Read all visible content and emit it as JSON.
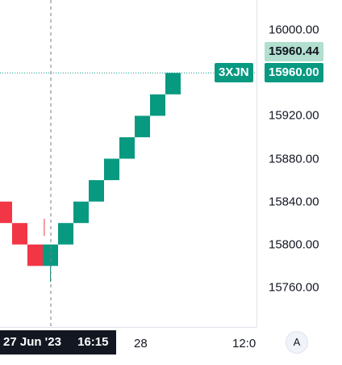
{
  "chart_data": {
    "type": "renko",
    "symbol": "3XJN",
    "box_size": 20,
    "price_axis": {
      "ticks": [
        "16000.00",
        "15960.00",
        "15920.00",
        "15880.00",
        "15840.00",
        "15800.00",
        "15760.00"
      ],
      "range": [
        15723,
        16028
      ]
    },
    "time_axis": {
      "labels": [
        "28",
        "12:0"
      ]
    },
    "bricks": [
      {
        "open": 15840,
        "close": 15820,
        "direction": "down"
      },
      {
        "open": 15820,
        "close": 15800,
        "direction": "down"
      },
      {
        "open": 15800,
        "close": 15780,
        "direction": "down"
      },
      {
        "open": 15780,
        "close": 15800,
        "direction": "up",
        "wick_low": 15765
      },
      {
        "open": 15800,
        "close": 15820,
        "direction": "up"
      },
      {
        "open": 15820,
        "close": 15840,
        "direction": "up"
      },
      {
        "open": 15840,
        "close": 15860,
        "direction": "up"
      },
      {
        "open": 15860,
        "close": 15880,
        "direction": "up"
      },
      {
        "open": 15880,
        "close": 15900,
        "direction": "up"
      },
      {
        "open": 15900,
        "close": 15920,
        "direction": "up",
        "wick_low": 15900
      },
      {
        "open": 15920,
        "close": 15940,
        "direction": "up"
      },
      {
        "open": 15940,
        "close": 15960,
        "direction": "up"
      }
    ],
    "extra_wick": {
      "x_index": 2.6,
      "high": 15824,
      "low": 15808
    },
    "last_price": "15960.00",
    "hover_price": "15960.44",
    "crosshair": {
      "date": "27 Jun '23",
      "time": "16:15"
    },
    "colors": {
      "up": "#089981",
      "down": "#f23645",
      "hover_badge": "#b2dfcf",
      "crosshair_badge": "#131722"
    }
  },
  "controls": {
    "auto_scale_label": "A"
  }
}
